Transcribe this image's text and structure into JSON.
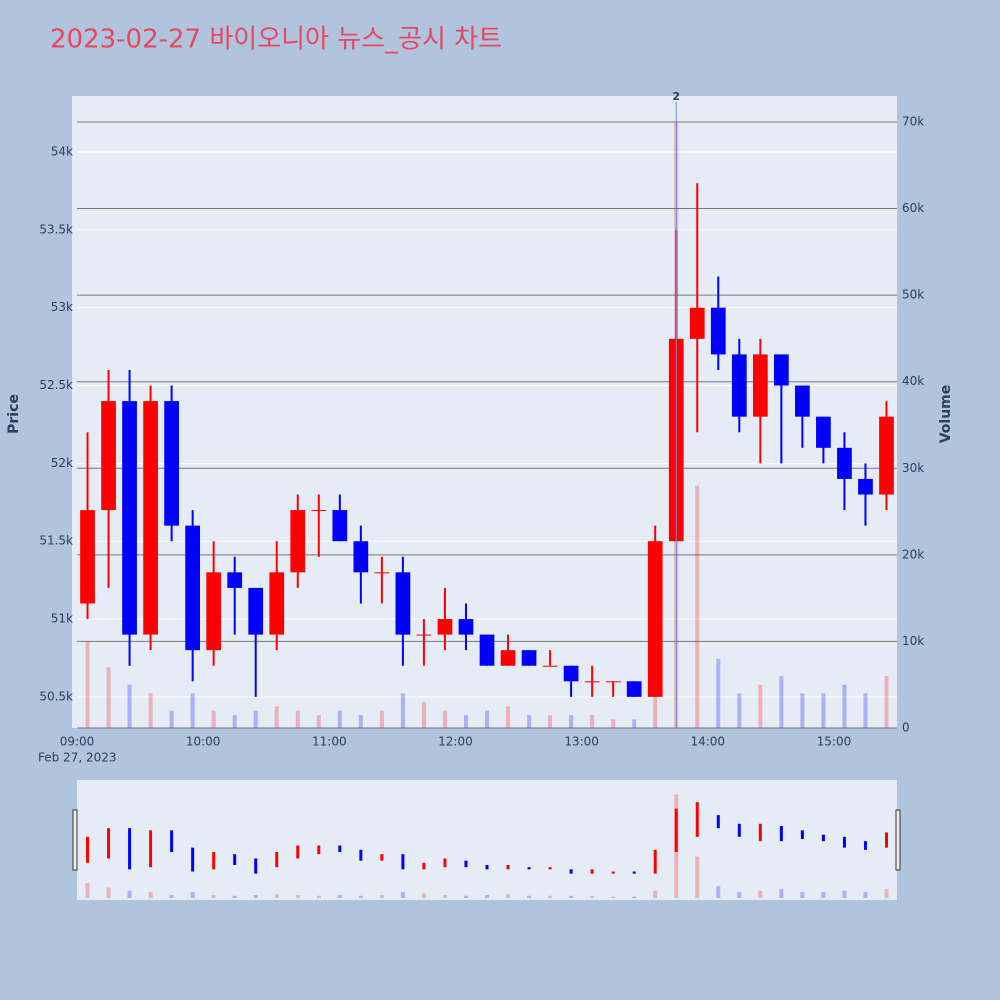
{
  "chart_data": {
    "type": "candlestick",
    "title": "2023-02-27 바이오니아 뉴스_공시 차트",
    "y_label": "Price",
    "y2_label": "Volume",
    "x_sublabel": "Feb 27, 2023",
    "annotation": {
      "x": "13:40",
      "text": "2"
    },
    "up_color": "#ff0000",
    "down_color": "#0000ff",
    "x": [
      "09:00",
      "09:10",
      "09:20",
      "09:30",
      "09:40",
      "09:50",
      "10:00",
      "10:10",
      "10:20",
      "10:30",
      "10:40",
      "10:50",
      "11:00",
      "11:10",
      "11:20",
      "11:30",
      "11:40",
      "11:50",
      "12:00",
      "12:10",
      "12:20",
      "12:30",
      "12:40",
      "12:50",
      "13:00",
      "13:10",
      "13:20",
      "13:30",
      "13:40",
      "13:50",
      "14:00",
      "14:10",
      "14:20",
      "14:30",
      "14:40",
      "14:50",
      "15:00",
      "15:10",
      "15:20"
    ],
    "open": [
      51100,
      51700,
      52400,
      50900,
      52400,
      51600,
      50800,
      51300,
      51200,
      50900,
      51300,
      51700,
      51700,
      51500,
      51300,
      51300,
      50900,
      50900,
      51000,
      50900,
      50700,
      50800,
      50700,
      50700,
      50600,
      50600,
      50600,
      50500,
      51500,
      52800,
      53000,
      52700,
      52300,
      52700,
      52500,
      52300,
      52100,
      51900,
      51800
    ],
    "high": [
      52200,
      52600,
      52600,
      52500,
      52500,
      51700,
      51500,
      51400,
      51200,
      51500,
      51800,
      51800,
      51800,
      51600,
      51400,
      51400,
      51000,
      51200,
      51100,
      50900,
      50900,
      50800,
      50800,
      50700,
      50700,
      50600,
      50600,
      51600,
      53500,
      53800,
      53200,
      52800,
      52800,
      52700,
      52500,
      52300,
      52200,
      52000,
      52400
    ],
    "low": [
      51000,
      51200,
      50700,
      50800,
      51500,
      50600,
      50700,
      50900,
      50500,
      50800,
      51200,
      51400,
      51500,
      51100,
      51100,
      50700,
      50700,
      50800,
      50800,
      50700,
      50700,
      50700,
      50700,
      50500,
      50500,
      50500,
      50500,
      50500,
      51500,
      52200,
      52600,
      52200,
      52000,
      52000,
      52100,
      52000,
      51700,
      51600,
      51700
    ],
    "close": [
      51700,
      52400,
      50900,
      52400,
      51600,
      50800,
      51300,
      51200,
      50900,
      51300,
      51700,
      51700,
      51500,
      51300,
      51300,
      50900,
      50900,
      51000,
      50900,
      50700,
      50800,
      50700,
      50700,
      50600,
      50600,
      50600,
      50500,
      51500,
      52800,
      53000,
      52700,
      52300,
      52700,
      52500,
      52300,
      52100,
      51900,
      51800,
      52300
    ],
    "volume": [
      10000,
      7000,
      5000,
      4000,
      2000,
      4000,
      2000,
      1500,
      2000,
      2500,
      2000,
      1500,
      2000,
      1500,
      2000,
      4000,
      3000,
      2000,
      1500,
      2000,
      2500,
      1500,
      1500,
      1500,
      1500,
      1000,
      1000,
      5000,
      70000,
      28000,
      8000,
      4000,
      5000,
      6000,
      4000,
      4000,
      5000,
      4000,
      6000
    ],
    "xlim": [
      "09:00",
      "15:30"
    ],
    "xticks": [
      "09:00",
      "10:00",
      "11:00",
      "12:00",
      "13:00",
      "14:00",
      "15:00"
    ],
    "ylim": [
      50300,
      54360
    ],
    "yticks": [
      {
        "value": 50500,
        "label": "50.5k"
      },
      {
        "value": 51000,
        "label": "51k"
      },
      {
        "value": 51500,
        "label": "51.5k"
      },
      {
        "value": 52000,
        "label": "52k"
      },
      {
        "value": 52500,
        "label": "52.5k"
      },
      {
        "value": 53000,
        "label": "53k"
      },
      {
        "value": 53500,
        "label": "53.5k"
      },
      {
        "value": 54000,
        "label": "54k"
      }
    ],
    "y2lim": [
      0,
      73000
    ],
    "y2ticks": [
      0,
      {
        "value": 10000,
        "label": "10k"
      },
      {
        "value": 20000,
        "label": "20k"
      },
      {
        "value": 30000,
        "label": "30k"
      },
      {
        "value": 40000,
        "label": "40k"
      },
      {
        "value": 50000,
        "label": "50k"
      },
      {
        "value": 60000,
        "label": "60k"
      },
      {
        "value": 70000,
        "label": "70k"
      }
    ]
  }
}
